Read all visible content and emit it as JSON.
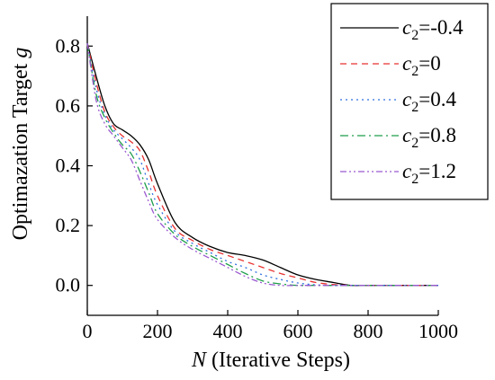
{
  "chart_data": {
    "type": "line",
    "xlabel_var": "N",
    "xlabel_rest": " (Iterative Steps)",
    "ylabel_text": "Optimazation Target ",
    "ylabel_var": "g",
    "xlim": [
      0,
      1000
    ],
    "ylim": [
      -0.1,
      0.9
    ],
    "x_ticks": [
      0,
      200,
      400,
      600,
      800,
      1000
    ],
    "x_tick_labels": [
      "0",
      "200",
      "400",
      "600",
      "800",
      "1000"
    ],
    "y_ticks": [
      0.0,
      0.2,
      0.4,
      0.6,
      0.8
    ],
    "y_tick_labels": [
      "0.0",
      "0.2",
      "0.4",
      "0.6",
      "0.8"
    ],
    "grid": false,
    "legend_position": "top-right",
    "series": [
      {
        "name": "c2=-0.4",
        "legend_main": "c",
        "legend_sub": "2",
        "legend_rest": "=-0.4",
        "color": "#000000",
        "dash": "",
        "x": [
          0,
          25,
          50,
          75,
          100,
          125,
          150,
          175,
          200,
          250,
          300,
          350,
          400,
          450,
          500,
          550,
          600,
          650,
          700,
          750,
          800,
          900,
          1000
        ],
        "y": [
          0.81,
          0.7,
          0.6,
          0.54,
          0.52,
          0.5,
          0.47,
          0.42,
          0.34,
          0.21,
          0.16,
          0.13,
          0.11,
          0.1,
          0.085,
          0.06,
          0.035,
          0.02,
          0.01,
          0.0,
          0.0,
          0.0,
          0.0
        ]
      },
      {
        "name": "c2=0",
        "legend_main": "c",
        "legend_sub": "2",
        "legend_rest": "=0",
        "color": "#e8312f",
        "dash": "7,5",
        "x": [
          0,
          25,
          50,
          75,
          100,
          125,
          150,
          175,
          200,
          250,
          300,
          350,
          400,
          450,
          500,
          550,
          600,
          650,
          700,
          750,
          800,
          900,
          1000
        ],
        "y": [
          0.81,
          0.68,
          0.58,
          0.53,
          0.5,
          0.48,
          0.45,
          0.38,
          0.3,
          0.19,
          0.15,
          0.12,
          0.1,
          0.08,
          0.06,
          0.04,
          0.025,
          0.01,
          0.003,
          0.0,
          0.0,
          0.0,
          0.0
        ]
      },
      {
        "name": "c2=0.4",
        "legend_main": "c",
        "legend_sub": "2",
        "legend_rest": "=0.4",
        "color": "#2f6fe0",
        "dash": "2,4",
        "x": [
          0,
          25,
          50,
          75,
          100,
          125,
          150,
          175,
          200,
          250,
          300,
          350,
          400,
          450,
          500,
          550,
          600,
          650,
          700,
          750,
          800,
          900,
          1000
        ],
        "y": [
          0.81,
          0.66,
          0.57,
          0.52,
          0.49,
          0.46,
          0.42,
          0.34,
          0.27,
          0.18,
          0.14,
          0.11,
          0.08,
          0.06,
          0.035,
          0.02,
          0.008,
          0.002,
          0.0,
          0.0,
          0.0,
          0.0,
          0.0
        ]
      },
      {
        "name": "c2=0.8",
        "legend_main": "c",
        "legend_sub": "2",
        "legend_rest": "=0.8",
        "color": "#1f9e4a",
        "dash": "9,4,2,4",
        "x": [
          0,
          25,
          50,
          75,
          100,
          125,
          150,
          175,
          200,
          250,
          300,
          350,
          400,
          450,
          500,
          550,
          600,
          650,
          700,
          750,
          800,
          900,
          1000
        ],
        "y": [
          0.81,
          0.64,
          0.56,
          0.51,
          0.47,
          0.44,
          0.38,
          0.31,
          0.24,
          0.17,
          0.13,
          0.1,
          0.07,
          0.04,
          0.015,
          0.005,
          0.0,
          0.0,
          0.0,
          0.0,
          0.0,
          0.0,
          0.0
        ]
      },
      {
        "name": "c2=1.2",
        "legend_main": "c",
        "legend_sub": "2",
        "legend_rest": "=1.2",
        "color": "#9b59d0",
        "dash": "7,3,2,3,2,3",
        "x": [
          0,
          25,
          50,
          75,
          100,
          125,
          150,
          175,
          200,
          250,
          300,
          350,
          400,
          450,
          500,
          550,
          600,
          650,
          700,
          750,
          800,
          900,
          1000
        ],
        "y": [
          0.81,
          0.62,
          0.54,
          0.5,
          0.46,
          0.42,
          0.35,
          0.28,
          0.22,
          0.16,
          0.12,
          0.09,
          0.06,
          0.03,
          0.008,
          0.0,
          0.0,
          0.0,
          0.0,
          0.0,
          0.0,
          0.0,
          0.0
        ]
      }
    ]
  }
}
